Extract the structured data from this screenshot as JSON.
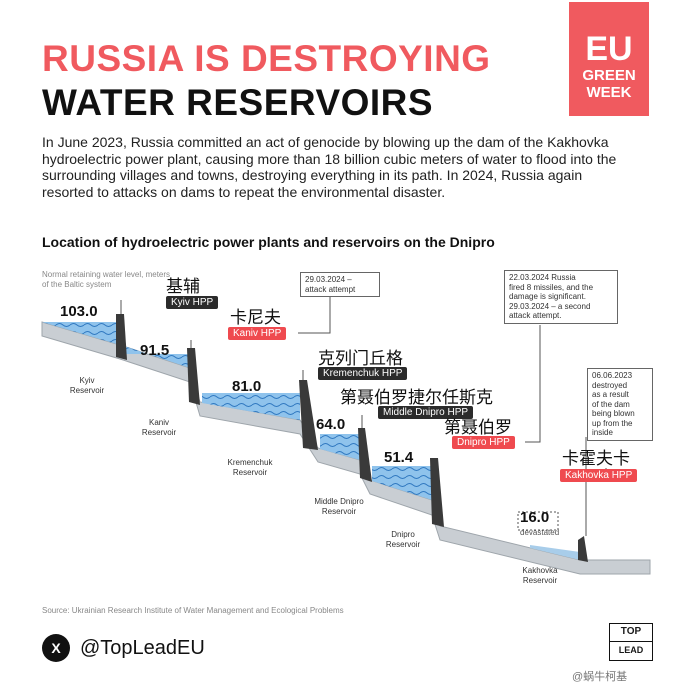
{
  "header": {
    "title_line1": "RUSSIA IS DESTROYING",
    "title_line2": "WATER RESERVOIRS",
    "badge": [
      "EU",
      "GREEN",
      "WEEK"
    ]
  },
  "intro_text": "In June 2023, Russia committed an act of genocide by blowing up the dam of the Kakhovka hydroelectric power plant, causing more than 18 billion cubic meters of water to flood into the surrounding villages and towns, destroying everything in its path. In 2024, Russia again resorted to attacks on dams to repeat the environmental disaster.",
  "diagram": {
    "subtitle": "Location of hydroelectric power plants and reservoirs on the Dnipro",
    "axis_note": "Normal retaining water level, meters of the Baltic system",
    "levels": [
      "103.0",
      "91.5",
      "81.0",
      "64.0",
      "51.4",
      "16.0"
    ],
    "devastated_label": "devastated",
    "reservoirs": [
      "Kyiv\nReservoir",
      "Kaniv\nReservoir",
      "Kremenchuk\nReservoir",
      "Middle Dnipro\nReservoir",
      "Dnipro\nReservoir",
      "Kakhovka\nReservoir"
    ],
    "plants": [
      {
        "name": "Kyiv HPP",
        "zh": "基辅",
        "attacked": false
      },
      {
        "name": "Kaniv HPP",
        "zh": "卡尼夫",
        "attacked": true
      },
      {
        "name": "Kremenchuk HPP",
        "zh": "克列门丘格",
        "attacked": false
      },
      {
        "name": "Middle Dnipro HPP",
        "zh": "第聂伯罗捷尔任斯克",
        "attacked": false
      },
      {
        "name": "Dnipro HPP",
        "zh": "第聂伯罗",
        "attacked": true
      },
      {
        "name": "Kakhovka HPP",
        "zh": "卡霍夫卡",
        "attacked": true
      }
    ],
    "notes": {
      "kaniv": "29.03.2024 –\nattack attempt",
      "dnipro": "22.03.2024 Russia\nfired 8 missiles, and the\ndamage is significant.\n29.03.2024 – a second\nattack attempt.",
      "kakhovka": "06.06.2023\ndestroyed\nas a result\nof the dam\nbeing blown\nup from the\ninside"
    },
    "colors": {
      "water": "#7fb8e6",
      "water_dark": "#4f95d4",
      "dam": "#3a3a3a",
      "ground": "#c9ced3",
      "accent": "#f05a5f"
    }
  },
  "source": "Source: Ukrainian Research Institute of Water Management and Ecological Problems",
  "footer": {
    "x_icon": "X",
    "handle": "@TopLeadEU",
    "logo_top": "TOP",
    "logo_bottom": "LEAD",
    "watermark": "@蜗牛柯基"
  }
}
